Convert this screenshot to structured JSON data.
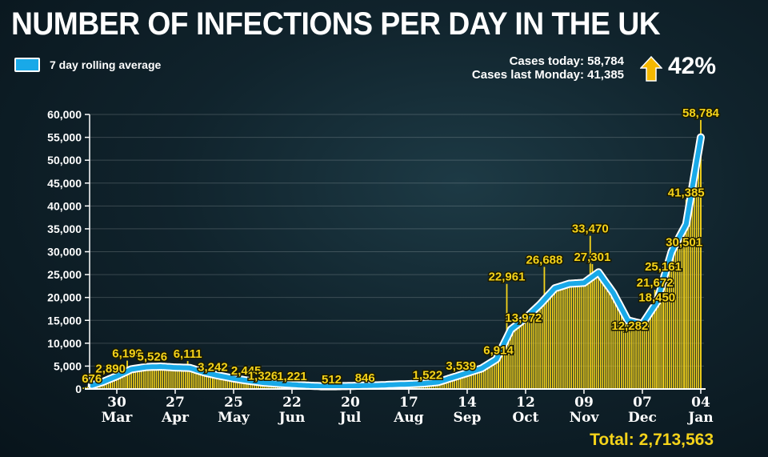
{
  "title": "NUMBER OF INFECTIONS PER DAY IN THE UK",
  "legend": {
    "label": "7 day rolling average"
  },
  "stats": {
    "cases_today": "Cases today: 58,784",
    "cases_last_monday": "Cases last Monday: 41,385",
    "change": "42%",
    "change_icon": "arrow-up-icon"
  },
  "total": "Total:  2,713,563",
  "colors": {
    "bars": "#f5d31a",
    "line": "#19a9e8",
    "line_outline": "#ffffff",
    "background": "#10232c"
  },
  "chart_data": {
    "type": "bar",
    "title": "NUMBER OF INFECTIONS PER DAY IN THE UK",
    "xlabel": "",
    "ylabel": "",
    "ylim": [
      0,
      60000
    ],
    "yticks": [
      "0",
      "5,000",
      "10,000",
      "15,000",
      "20,000",
      "25,000",
      "30,000",
      "35,000",
      "40,000",
      "45,000",
      "50,000",
      "55,000",
      "60,000"
    ],
    "xlim": [
      "2020-03-15",
      "2021-01-05"
    ],
    "xticks": [
      {
        "date": "2020-03-30",
        "day": "30",
        "month": "Mar"
      },
      {
        "date": "2020-04-27",
        "day": "27",
        "month": "Apr"
      },
      {
        "date": "2020-05-25",
        "day": "25",
        "month": "May"
      },
      {
        "date": "2020-06-22",
        "day": "22",
        "month": "Jun"
      },
      {
        "date": "2020-07-20",
        "day": "20",
        "month": "Jul"
      },
      {
        "date": "2020-08-17",
        "day": "17",
        "month": "Aug"
      },
      {
        "date": "2020-09-14",
        "day": "14",
        "month": "Sep"
      },
      {
        "date": "2020-10-12",
        "day": "12",
        "month": "Oct"
      },
      {
        "date": "2020-11-09",
        "day": "09",
        "month": "Nov"
      },
      {
        "date": "2020-12-07",
        "day": "07",
        "month": "Dec"
      },
      {
        "date": "2021-01-04",
        "day": "04",
        "month": "Jan"
      }
    ],
    "grid": true,
    "legend_position": "top-left",
    "rolling_average": [
      [
        "2020-03-16",
        500
      ],
      [
        "2020-03-23",
        1500
      ],
      [
        "2020-03-30",
        2800
      ],
      [
        "2020-04-06",
        4300
      ],
      [
        "2020-04-13",
        4800
      ],
      [
        "2020-04-20",
        4900
      ],
      [
        "2020-04-27",
        4700
      ],
      [
        "2020-05-04",
        4600
      ],
      [
        "2020-05-11",
        3600
      ],
      [
        "2020-05-18",
        2900
      ],
      [
        "2020-05-25",
        2300
      ],
      [
        "2020-06-01",
        1800
      ],
      [
        "2020-06-08",
        1400
      ],
      [
        "2020-06-15",
        1150
      ],
      [
        "2020-06-22",
        950
      ],
      [
        "2020-06-29",
        750
      ],
      [
        "2020-07-06",
        600
      ],
      [
        "2020-07-13",
        600
      ],
      [
        "2020-07-20",
        650
      ],
      [
        "2020-07-27",
        750
      ],
      [
        "2020-08-03",
        800
      ],
      [
        "2020-08-10",
        950
      ],
      [
        "2020-08-17",
        1050
      ],
      [
        "2020-08-24",
        1200
      ],
      [
        "2020-08-31",
        1500
      ],
      [
        "2020-09-07",
        2500
      ],
      [
        "2020-09-14",
        3500
      ],
      [
        "2020-09-21",
        4500
      ],
      [
        "2020-09-28",
        6500
      ],
      [
        "2020-10-05",
        13000
      ],
      [
        "2020-10-12",
        15500
      ],
      [
        "2020-10-19",
        18500
      ],
      [
        "2020-10-26",
        22000
      ],
      [
        "2020-11-02",
        23000
      ],
      [
        "2020-11-09",
        23200
      ],
      [
        "2020-11-16",
        25500
      ],
      [
        "2020-11-23",
        21000
      ],
      [
        "2020-11-30",
        15000
      ],
      [
        "2020-12-07",
        14200
      ],
      [
        "2020-12-14",
        19000
      ],
      [
        "2020-12-21",
        30000
      ],
      [
        "2020-12-28",
        36000
      ],
      [
        "2021-01-04",
        55000
      ]
    ],
    "annotations": [
      {
        "date": "2020-03-18",
        "value": 676,
        "label": "676"
      },
      {
        "date": "2020-03-27",
        "value": 2890,
        "label": "2,890"
      },
      {
        "date": "2020-04-04",
        "value": 6199,
        "label": "6,199"
      },
      {
        "date": "2020-04-16",
        "value": 5526,
        "label": "5,526"
      },
      {
        "date": "2020-05-03",
        "value": 6111,
        "label": "6,111"
      },
      {
        "date": "2020-05-15",
        "value": 3242,
        "label": "3,242"
      },
      {
        "date": "2020-05-31",
        "value": 2445,
        "label": "2,445"
      },
      {
        "date": "2020-06-08",
        "value": 1326,
        "label": "1,326"
      },
      {
        "date": "2020-06-22",
        "value": 1221,
        "label": "1,221"
      },
      {
        "date": "2020-07-11",
        "value": 512,
        "label": "512"
      },
      {
        "date": "2020-07-27",
        "value": 846,
        "label": "846"
      },
      {
        "date": "2020-08-26",
        "value": 1522,
        "label": "1,522"
      },
      {
        "date": "2020-09-11",
        "value": 3539,
        "label": "3,539"
      },
      {
        "date": "2020-09-29",
        "value": 6914,
        "label": "6,914"
      },
      {
        "date": "2020-10-03",
        "value": 22961,
        "label": "22,961"
      },
      {
        "date": "2020-10-11",
        "value": 13972,
        "label": "13,972"
      },
      {
        "date": "2020-10-21",
        "value": 26688,
        "label": "26,688"
      },
      {
        "date": "2020-11-12",
        "value": 33470,
        "label": "33,470"
      },
      {
        "date": "2020-11-13",
        "value": 27301,
        "label": "27,301"
      },
      {
        "date": "2020-12-01",
        "value": 12282,
        "label": "12,282"
      },
      {
        "date": "2020-12-14",
        "value": 18450,
        "label": "18,450"
      },
      {
        "date": "2020-12-13",
        "value": 21672,
        "label": "21,672"
      },
      {
        "date": "2020-12-17",
        "value": 25161,
        "label": "25,161"
      },
      {
        "date": "2020-12-27",
        "value": 30501,
        "label": "30,501"
      },
      {
        "date": "2020-12-28",
        "value": 41385,
        "label": "41,385"
      },
      {
        "date": "2021-01-04",
        "value": 58784,
        "label": "58,784"
      }
    ]
  }
}
